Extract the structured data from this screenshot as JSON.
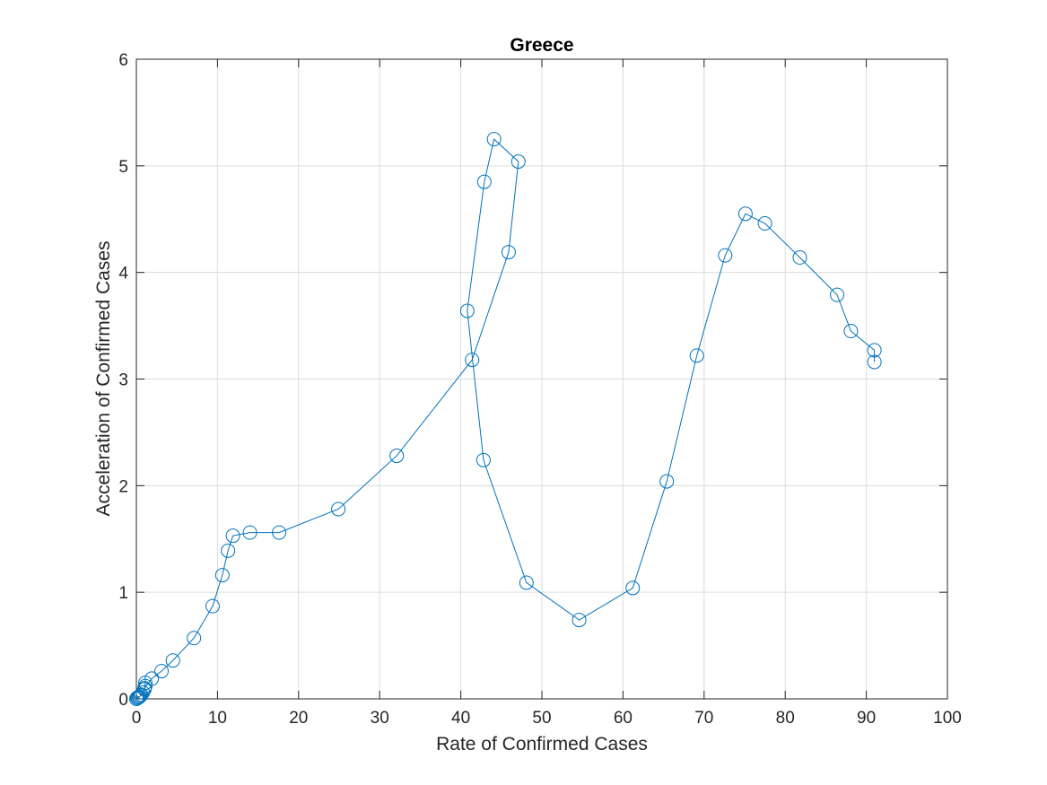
{
  "chart_data": {
    "type": "line",
    "title": "Greece",
    "xlabel": "Rate of Confirmed Cases",
    "ylabel": "Acceleration of Confirmed Cases",
    "xlim": [
      0,
      100
    ],
    "ylim": [
      0,
      6
    ],
    "xticks": [
      "0",
      "10",
      "20",
      "30",
      "40",
      "50",
      "60",
      "70",
      "80",
      "90",
      "100"
    ],
    "yticks": [
      "0",
      "1",
      "2",
      "3",
      "4",
      "5",
      "6"
    ],
    "grid": true,
    "series_color": "#0072bd",
    "series": [
      {
        "name": "Greece",
        "marker": "circle",
        "x": [
          0.0,
          0.1,
          0.2,
          0.3,
          0.4,
          0.5,
          0.6,
          0.8,
          1.0,
          1.1,
          1.1,
          1.0,
          1.9,
          3.1,
          4.5,
          7.1,
          9.4,
          10.6,
          11.3,
          11.9,
          14.0,
          17.6,
          24.9,
          32.1,
          41.4,
          45.9,
          47.1,
          44.1,
          42.9,
          40.8,
          42.8,
          48.1,
          54.6,
          61.2,
          65.4,
          69.1,
          72.6,
          75.1,
          77.5,
          81.8,
          86.4,
          88.1,
          91.0,
          91.0
        ],
        "y": [
          0.0,
          0.01,
          0.01,
          0.02,
          0.02,
          0.03,
          0.04,
          0.06,
          0.09,
          0.12,
          0.15,
          0.1,
          0.19,
          0.26,
          0.36,
          0.57,
          0.87,
          1.16,
          1.39,
          1.53,
          1.56,
          1.56,
          1.78,
          2.28,
          3.18,
          4.19,
          5.04,
          5.25,
          4.85,
          3.64,
          2.24,
          1.09,
          0.74,
          1.04,
          2.04,
          3.22,
          4.16,
          4.55,
          4.46,
          4.14,
          3.79,
          3.45,
          3.27,
          3.16
        ]
      }
    ]
  }
}
